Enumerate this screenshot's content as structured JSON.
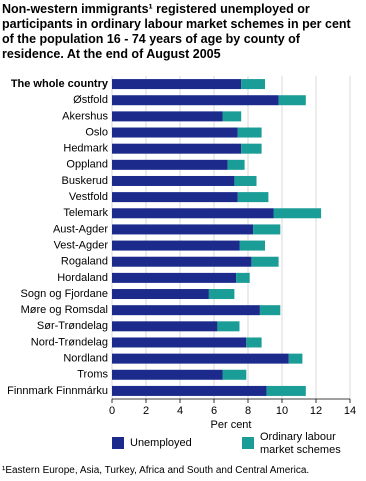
{
  "chart_data": {
    "type": "stacked_bar_horizontal",
    "title": "Non-western immigrants¹ registered unemployed or participants in ordinary labour market schemes in per cent of the population 16 - 74 years of age by county of residence. At the end of August 2005",
    "categories": [
      "The whole country",
      "Østfold",
      "Akershus",
      "Oslo",
      "Hedmark",
      "Oppland",
      "Buskerud",
      "Vestfold",
      "Telemark",
      "Aust-Agder",
      "Vest-Agder",
      "Rogaland",
      "Hordaland",
      "Sogn og Fjordane",
      "Møre og Romsdal",
      "Sør-Trøndelag",
      "Nord-Trøndelag",
      "Nordland",
      "Troms",
      "Finnmark Finnmárku"
    ],
    "series": [
      {
        "name": "Unemployed",
        "color": "#1c2a8c",
        "values": [
          7.6,
          9.8,
          6.5,
          7.4,
          7.6,
          6.8,
          7.2,
          7.4,
          9.5,
          8.3,
          7.5,
          8.2,
          7.3,
          5.7,
          8.7,
          6.2,
          7.9,
          10.4,
          6.5,
          9.1
        ]
      },
      {
        "name": "Ordinary labour market schemes",
        "color": "#1a9c97",
        "values": [
          1.4,
          1.6,
          1.1,
          1.4,
          1.2,
          1.0,
          1.3,
          1.8,
          2.8,
          1.6,
          1.5,
          1.6,
          0.8,
          1.5,
          1.2,
          1.3,
          0.9,
          0.8,
          1.4,
          2.3
        ]
      }
    ],
    "xlabel": "Per cent",
    "xlim": [
      0,
      14
    ],
    "xticks": [
      0,
      2,
      4,
      6,
      8,
      10,
      12,
      14
    ],
    "grid": true,
    "footnote": "¹Eastern Europe, Asia, Turkey, Africa and South and Central America."
  }
}
